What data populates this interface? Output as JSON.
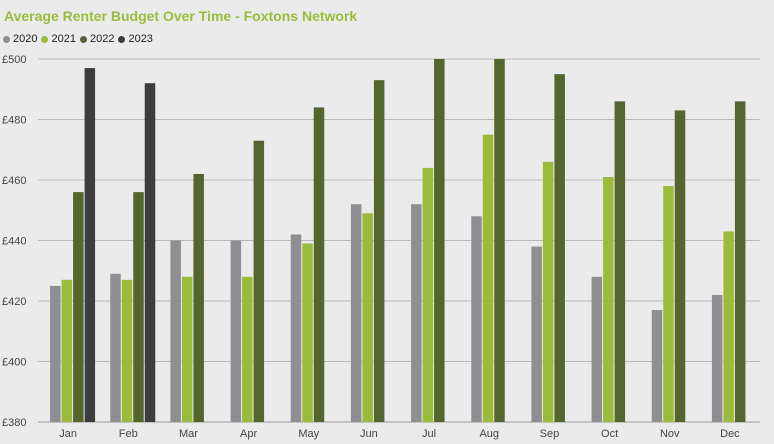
{
  "chart_data": {
    "type": "bar",
    "title": "Average Renter Budget Over Time - Foxtons Network",
    "categories": [
      "Jan",
      "Feb",
      "Mar",
      "Apr",
      "May",
      "Jun",
      "Jul",
      "Aug",
      "Sep",
      "Oct",
      "Nov",
      "Dec"
    ],
    "series": [
      {
        "name": "2020",
        "color": "#8f8f93",
        "values": [
          425,
          429,
          440,
          440,
          442,
          452,
          452,
          448,
          438,
          428,
          417,
          422
        ]
      },
      {
        "name": "2021",
        "color": "#9bbb3b",
        "values": [
          427,
          427,
          428,
          428,
          439,
          449,
          464,
          475,
          466,
          461,
          458,
          443
        ]
      },
      {
        "name": "2022",
        "color": "#55652e",
        "values": [
          456,
          456,
          462,
          473,
          484,
          493,
          500,
          500,
          495,
          486,
          483,
          486
        ]
      },
      {
        "name": "2023",
        "color": "#3d3d3d",
        "values": [
          497,
          492,
          null,
          null,
          null,
          null,
          null,
          null,
          null,
          null,
          null,
          null
        ]
      }
    ],
    "y_ticks": [
      "£380",
      "£400",
      "£420",
      "£440",
      "£460",
      "£480",
      "£500"
    ],
    "y_tick_values": [
      380,
      400,
      420,
      440,
      460,
      480,
      500
    ],
    "ylim": [
      380,
      500
    ],
    "grid": true,
    "legend_position": "top-left"
  }
}
